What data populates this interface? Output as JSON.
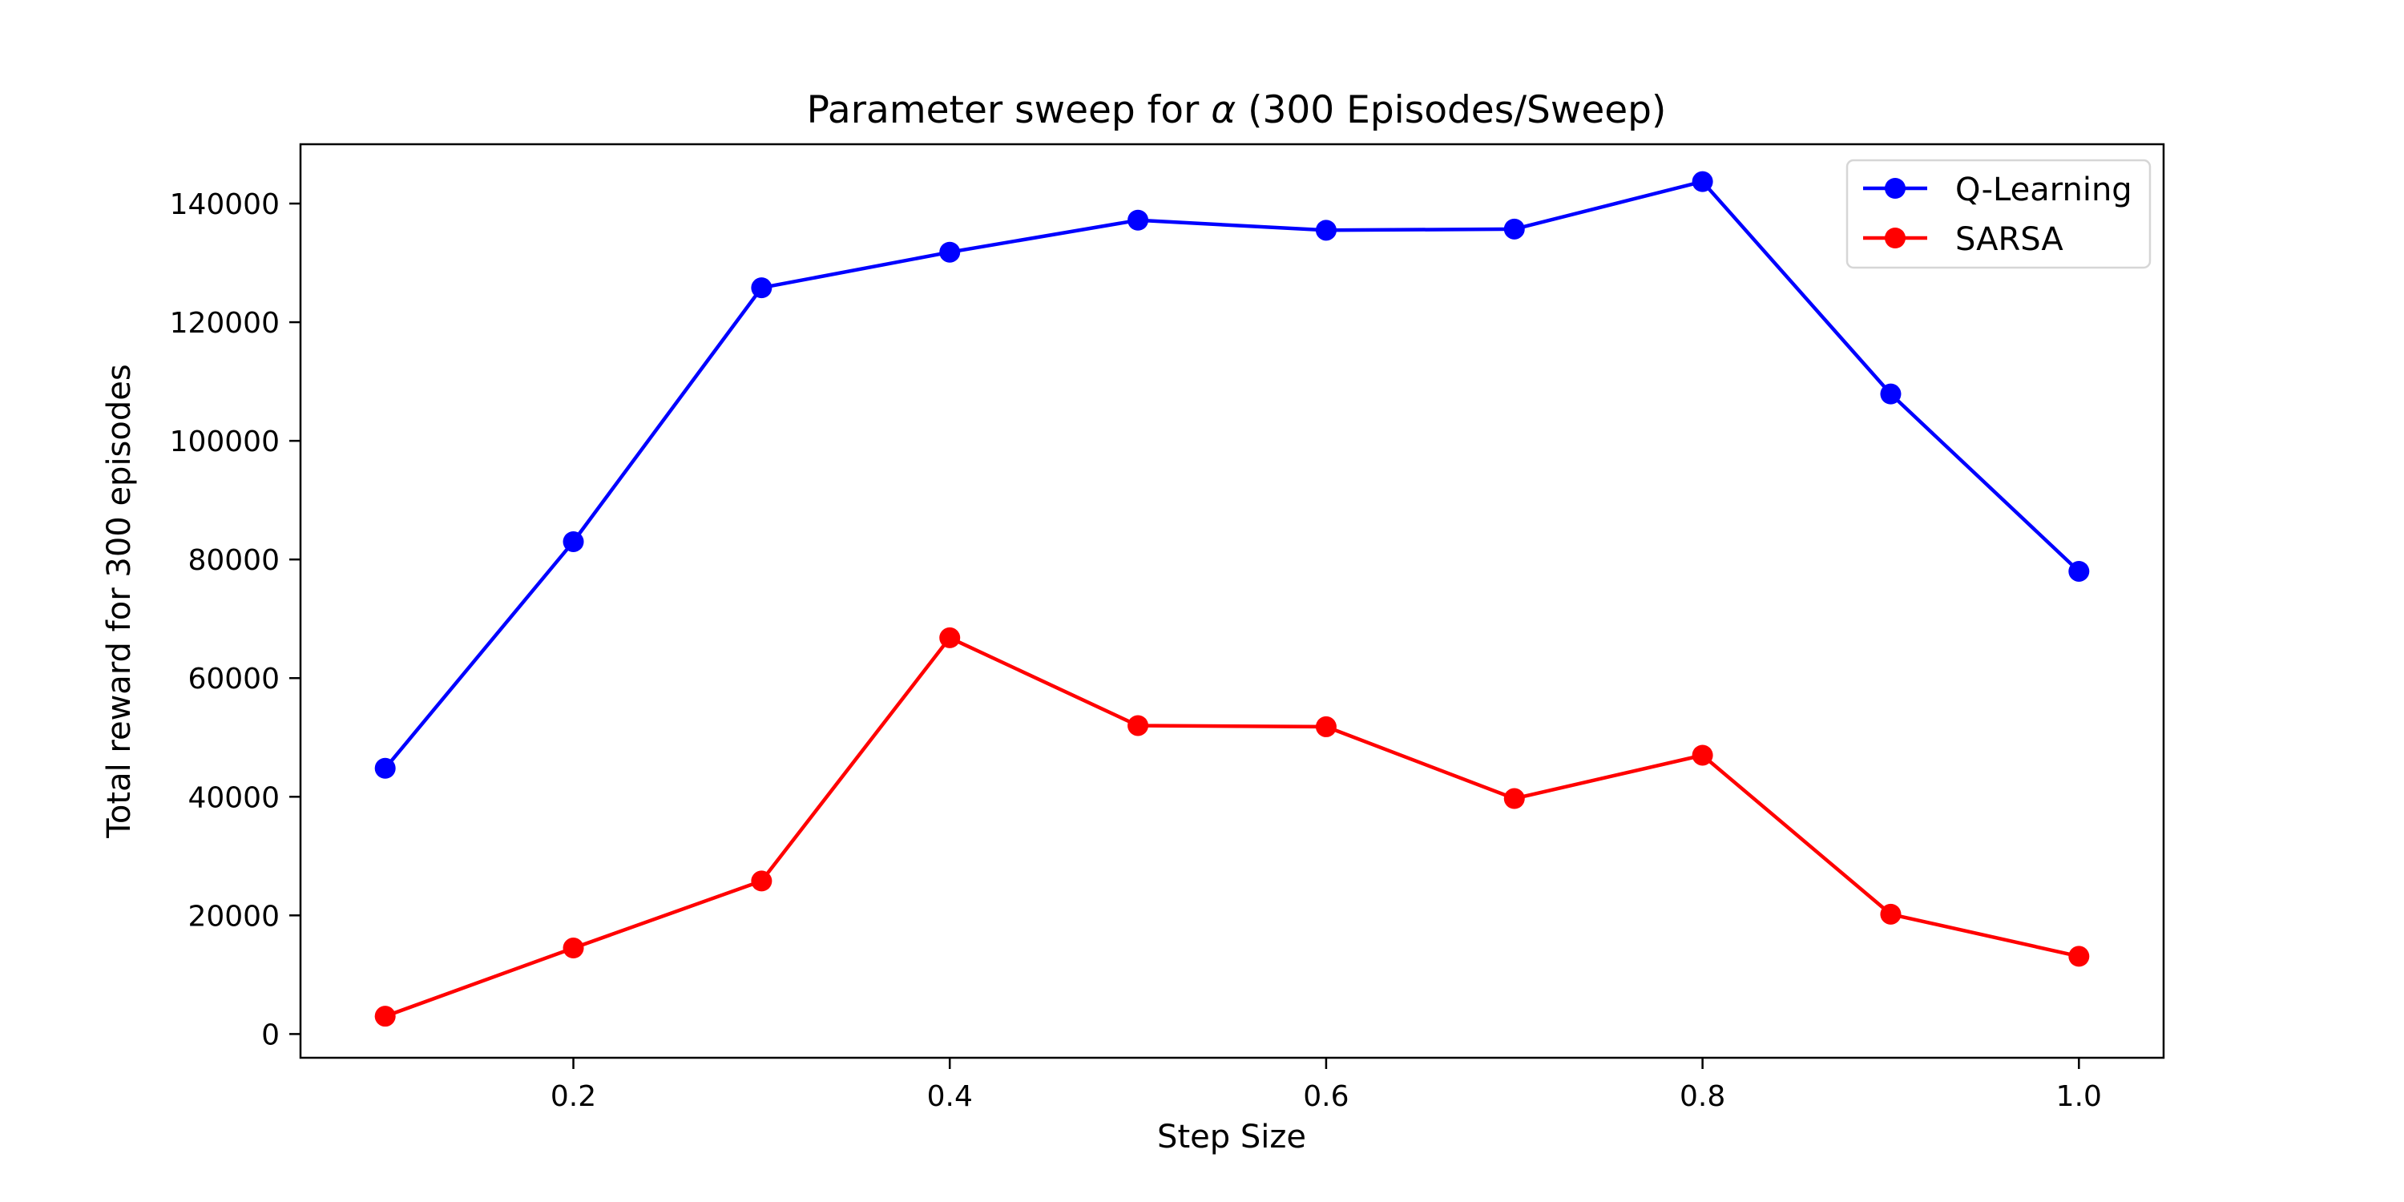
{
  "chart_data": {
    "type": "line",
    "title": "Parameter sweep for α (300 Episodes/Sweep)",
    "title_parts": {
      "before": "Parameter sweep for ",
      "symbol": "α",
      "after": " (300 Episodes/Sweep)"
    },
    "xlabel": "Step Size",
    "ylabel": "Total reward for 300 episodes",
    "x": [
      0.1,
      0.2,
      0.3,
      0.4,
      0.5,
      0.6,
      0.7,
      0.8,
      0.9,
      1.0
    ],
    "xlim": [
      0.055,
      1.045
    ],
    "ylim": [
      -4000,
      150000
    ],
    "x_ticks": [
      {
        "value": 0.2,
        "label": "0.2"
      },
      {
        "value": 0.4,
        "label": "0.4"
      },
      {
        "value": 0.6,
        "label": "0.6"
      },
      {
        "value": 0.8,
        "label": "0.8"
      },
      {
        "value": 1.0,
        "label": "1.0"
      }
    ],
    "y_ticks": [
      {
        "value": 0,
        "label": "0"
      },
      {
        "value": 20000,
        "label": "20000"
      },
      {
        "value": 40000,
        "label": "40000"
      },
      {
        "value": 60000,
        "label": "60000"
      },
      {
        "value": 80000,
        "label": "80000"
      },
      {
        "value": 100000,
        "label": "100000"
      },
      {
        "value": 120000,
        "label": "120000"
      },
      {
        "value": 140000,
        "label": "140000"
      }
    ],
    "series": [
      {
        "name": "Q-Learning",
        "color": "#0000ff",
        "marker": "circle",
        "values": [
          44800,
          83000,
          125800,
          131800,
          137200,
          135500,
          135700,
          143700,
          107900,
          78000
        ]
      },
      {
        "name": "SARSA",
        "color": "#ff0000",
        "marker": "circle",
        "values": [
          3000,
          14500,
          25800,
          66800,
          52000,
          51800,
          39700,
          47000,
          20200,
          13100
        ]
      }
    ],
    "grid": false,
    "legend_position": "top-right"
  }
}
